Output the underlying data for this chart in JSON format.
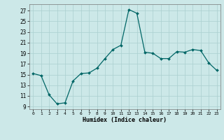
{
  "x": [
    0,
    1,
    2,
    3,
    4,
    5,
    6,
    7,
    8,
    9,
    10,
    11,
    12,
    13,
    14,
    15,
    16,
    17,
    18,
    19,
    20,
    21,
    22,
    23
  ],
  "y": [
    15.2,
    14.8,
    11.2,
    9.5,
    9.7,
    13.8,
    15.2,
    15.3,
    16.2,
    18.0,
    19.7,
    20.5,
    27.2,
    26.5,
    19.2,
    19.0,
    18.0,
    18.0,
    19.3,
    19.2,
    19.7,
    19.5,
    17.2,
    15.8
  ],
  "bg_color": "#cce8e8",
  "line_color": "#006666",
  "marker_color": "#006666",
  "grid_color": "#aacfcf",
  "ylabel_ticks": [
    9,
    11,
    13,
    15,
    17,
    19,
    21,
    23,
    25,
    27
  ],
  "xlabel": "Humidex (Indice chaleur)",
  "xlim": [
    -0.5,
    23.5
  ],
  "ylim": [
    8.5,
    28.2
  ]
}
